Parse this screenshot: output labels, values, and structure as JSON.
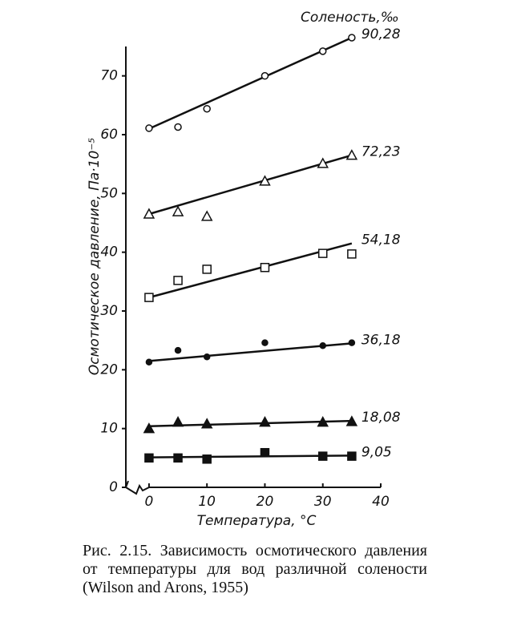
{
  "chart_data": {
    "type": "scatter",
    "legend_title": "Соленость,‰",
    "ylabel": "Осмотическое давление, Па·10⁻⁵",
    "xlabel": "Температура, °С",
    "caption": "Рис. 2.15. Зависимость осмотического давления от температуры для вод различной солености (Wilson and Arons, 1955)",
    "xlim": [
      -4,
      40
    ],
    "xticks": [
      0,
      10,
      20,
      30,
      40
    ],
    "ylim": [
      0,
      78
    ],
    "yticks": [
      0,
      10,
      20,
      30,
      40,
      50,
      60,
      70
    ],
    "x": [
      0,
      5,
      10,
      20,
      30,
      35
    ],
    "fit_x": [
      0,
      35
    ],
    "color": "#111111",
    "series": [
      {
        "name": "90,28",
        "marker": "circle-open",
        "values": [
          61.1,
          61.3,
          64.4,
          70.0,
          74.2,
          76.5
        ],
        "fit": [
          61.0,
          76.5
        ]
      },
      {
        "name": "72,23",
        "marker": "triangle-open",
        "values": [
          46.5,
          46.9,
          46.1,
          52.1,
          55.1,
          56.5
        ],
        "fit": [
          46.5,
          56.5
        ]
      },
      {
        "name": "54,18",
        "marker": "square-open",
        "values": [
          32.3,
          35.2,
          37.1,
          37.4,
          39.8,
          39.7
        ],
        "fit": [
          32.3,
          41.5
        ]
      },
      {
        "name": "36,18",
        "marker": "circle-filled",
        "values": [
          21.3,
          23.3,
          22.2,
          24.6,
          24.1,
          24.6
        ],
        "fit": [
          21.5,
          24.5
        ]
      },
      {
        "name": "18,08",
        "marker": "triangle-filled",
        "values": [
          10.0,
          11.1,
          10.8,
          11.1,
          11.1,
          11.2
        ],
        "fit": [
          10.4,
          11.3
        ]
      },
      {
        "name": "9,05",
        "marker": "square-filled",
        "values": [
          5.0,
          5.0,
          4.8,
          5.9,
          5.3,
          5.3
        ],
        "fit": [
          5.1,
          5.4
        ]
      }
    ]
  }
}
